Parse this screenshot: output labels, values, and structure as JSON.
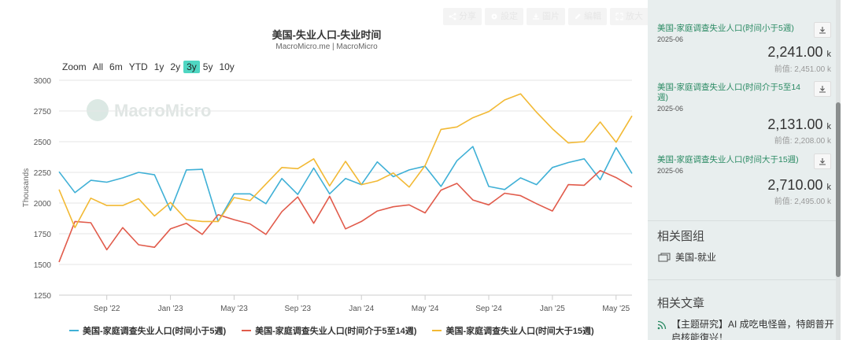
{
  "toolbar": {
    "buttons": [
      {
        "icon": "share-icon",
        "label": "分享"
      },
      {
        "icon": "settings-icon",
        "label": "設定"
      },
      {
        "icon": "download-icon",
        "label": "圖片"
      },
      {
        "icon": "edit-icon",
        "label": "編輯"
      },
      {
        "icon": "expand-icon",
        "label": "放大"
      }
    ]
  },
  "chart": {
    "title": "美国-失业人口-失业时间",
    "subtitle": "MacroMicro.me | MacroMicro",
    "watermark": "MacroMicro",
    "zoom_label": "Zoom",
    "zoom_options": [
      "All",
      "6m",
      "YTD",
      "1y",
      "2y",
      "3y",
      "5y",
      "10y"
    ],
    "zoom_selected": "3y"
  },
  "chart_data": {
    "type": "line",
    "ylabel": "Thousands",
    "ylim": [
      1250,
      3000
    ],
    "yticks": [
      1250,
      1500,
      1750,
      2000,
      2250,
      2500,
      2750,
      3000
    ],
    "xtick_labels": [
      "Sep '22",
      "Jan '23",
      "May '23",
      "Sep '23",
      "Jan '24",
      "May '24",
      "Sep '24",
      "Jan '25",
      "May '25"
    ],
    "x": [
      "2022-06",
      "2022-07",
      "2022-08",
      "2022-09",
      "2022-10",
      "2022-11",
      "2022-12",
      "2023-01",
      "2023-02",
      "2023-03",
      "2023-04",
      "2023-05",
      "2023-06",
      "2023-07",
      "2023-08",
      "2023-09",
      "2023-10",
      "2023-11",
      "2023-12",
      "2024-01",
      "2024-02",
      "2024-03",
      "2024-04",
      "2024-05",
      "2024-06",
      "2024-07",
      "2024-08",
      "2024-09",
      "2024-10",
      "2024-11",
      "2024-12",
      "2025-01",
      "2025-02",
      "2025-03",
      "2025-04",
      "2025-05",
      "2025-06"
    ],
    "series": [
      {
        "name": "美国-家庭调查失业人口(时间小于5週)",
        "color": "#3fb0d6",
        "values": [
          2255,
          2085,
          2185,
          2170,
          2205,
          2250,
          2230,
          1940,
          2270,
          2275,
          1850,
          2075,
          2075,
          1995,
          2200,
          2070,
          2285,
          2075,
          2200,
          2150,
          2335,
          2215,
          2270,
          2300,
          2135,
          2345,
          2460,
          2135,
          2110,
          2205,
          2150,
          2290,
          2330,
          2360,
          2190,
          2451,
          2241
        ]
      },
      {
        "name": "美国-家庭调查失业人口(时间介于5至14週)",
        "color": "#e15b4b",
        "values": [
          1520,
          1850,
          1840,
          1620,
          1800,
          1660,
          1640,
          1790,
          1835,
          1745,
          1905,
          1865,
          1830,
          1745,
          1930,
          2050,
          1835,
          2055,
          1790,
          1850,
          1935,
          1970,
          1985,
          1920,
          2105,
          2160,
          2025,
          1985,
          2080,
          2060,
          1995,
          1935,
          2150,
          2145,
          2265,
          2208,
          2131
        ]
      },
      {
        "name": "美国-家庭调查失业人口(时间大于15週)",
        "color": "#f2b934",
        "values": [
          2110,
          1800,
          2040,
          1980,
          1980,
          2035,
          1895,
          2005,
          1865,
          1850,
          1850,
          2045,
          2020,
          2155,
          2290,
          2280,
          2360,
          2140,
          2340,
          2150,
          2180,
          2245,
          2130,
          2305,
          2600,
          2620,
          2695,
          2745,
          2840,
          2890,
          2740,
          2605,
          2490,
          2500,
          2660,
          2495,
          2710
        ]
      }
    ]
  },
  "legend": [
    {
      "label": "美国-家庭调查失业人口(时间小于5週)",
      "color": "#3fb0d6"
    },
    {
      "label": "美国-家庭调查失业人口(时间介于5至14週)",
      "color": "#e15b4b"
    },
    {
      "label": "美国-家庭调查失业人口(时间大于15週)",
      "color": "#f2b934"
    }
  ],
  "panel": {
    "cards": [
      {
        "name": "美国-家庭调查失业人口(时间小于5週)",
        "date": "2025-06",
        "value": "2,241.00",
        "unit": "k",
        "prev": "前值: 2,451.00  k"
      },
      {
        "name": "美国-家庭调查失业人口(时间介于5至14週)",
        "date": "2025-06",
        "value": "2,131.00",
        "unit": "k",
        "prev": "前值: 2,208.00  k"
      },
      {
        "name": "美国-家庭调查失业人口(时间大于15週)",
        "date": "2025-06",
        "value": "2,710.00",
        "unit": "k",
        "prev": "前值: 2,495.00  k"
      }
    ],
    "related_charts_title": "相关图组",
    "related_chart_item": "美国-就业",
    "related_articles_title": "相关文章",
    "article_text": "【主题研究】AI 成吃电怪兽，特朗普开启核能復兴！"
  }
}
